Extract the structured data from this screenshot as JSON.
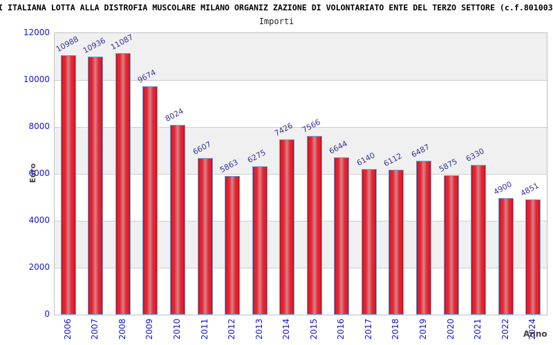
{
  "header": {
    "title": "I ITALIANA LOTTA ALLA DISTROFIA MUSCOLARE MILANO ORGANIZ ZAZIONE DI VOLONTARIATO ENTE DEL TERZO SETTORE (c.f.801003",
    "subtitle": "Importi"
  },
  "chart_data": {
    "type": "bar",
    "title": "Importi",
    "categories": [
      "2006",
      "2007",
      "2008",
      "2009",
      "2010",
      "2011",
      "2012",
      "2013",
      "2014",
      "2015",
      "2016",
      "2017",
      "2018",
      "2019",
      "2020",
      "2021",
      "2022",
      "2024"
    ],
    "values": [
      10988,
      10936,
      11087,
      9674,
      8024,
      6607,
      5863,
      6275,
      7426,
      7566,
      6644,
      6140,
      6112,
      6487,
      5875,
      6330,
      4900,
      4851
    ],
    "xlabel": "Anno",
    "ylabel": "Euro",
    "ylim": [
      0,
      12000
    ],
    "yticks": [
      0,
      2000,
      4000,
      6000,
      8000,
      10000,
      12000
    ],
    "grid": true,
    "legend": "none",
    "colors": {
      "bar_red": "#e8212e",
      "bar_red_dark": "#b5121f",
      "bar_center_highlight": "#d0868d",
      "bar_border_blue": "#64a0dc",
      "value_label": "#333399",
      "tick_label": "#1414cc",
      "axis_title": "#444444",
      "band_gray": "#f0f0f0",
      "band_white": "#ffffff",
      "gridline": "#cccccc",
      "plot_border": "#c0c0c0"
    }
  }
}
